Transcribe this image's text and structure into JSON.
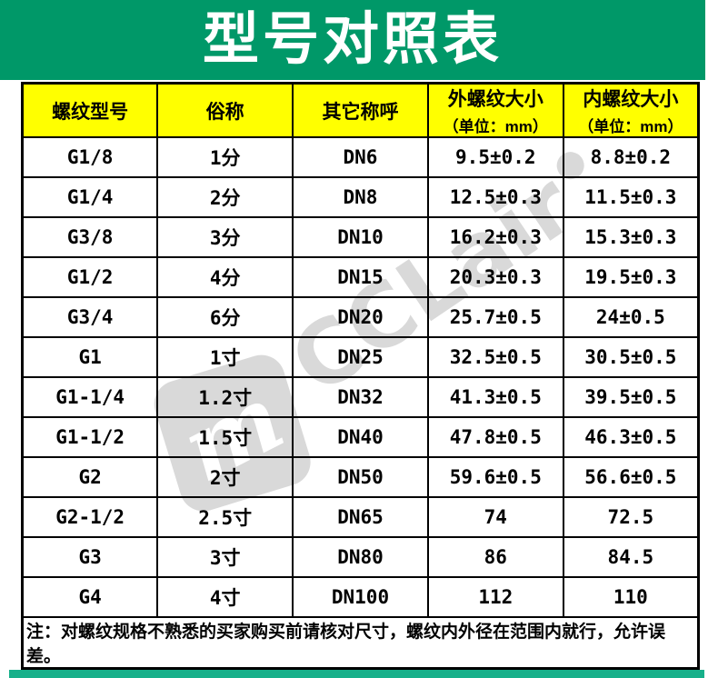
{
  "banner": {
    "title": "型号对照表",
    "bg_color": "#009868",
    "text_color": "#ffffff"
  },
  "table": {
    "header_bg": "#ffff00",
    "border_color": "#000000",
    "columns": [
      {
        "label": "螺纹型号",
        "unit": ""
      },
      {
        "label": "俗称",
        "unit": ""
      },
      {
        "label": "其它称呼",
        "unit": ""
      },
      {
        "label": "外螺纹大小",
        "unit": "（单位：mm）"
      },
      {
        "label": "内螺纹大小",
        "unit": "（单位：mm）"
      }
    ],
    "rows": [
      [
        "G1/8",
        "1分",
        "DN6",
        "9.5±0.2",
        "8.8±0.2"
      ],
      [
        "G1/4",
        "2分",
        "DN8",
        "12.5±0.3",
        "11.5±0.3"
      ],
      [
        "G3/8",
        "3分",
        "DN10",
        "16.2±0.3",
        "15.3±0.3"
      ],
      [
        "G1/2",
        "4分",
        "DN15",
        "20.3±0.3",
        "19.5±0.3"
      ],
      [
        "G3/4",
        "6分",
        "DN20",
        "25.7±0.5",
        "24±0.5"
      ],
      [
        "G1",
        "1寸",
        "DN25",
        "32.5±0.5",
        "30.5±0.5"
      ],
      [
        "G1-1/4",
        "1.2寸",
        "DN32",
        "41.3±0.5",
        "39.5±0.5"
      ],
      [
        "G1-1/2",
        "1.5寸",
        "DN40",
        "47.8±0.5",
        "46.3±0.5"
      ],
      [
        "G2",
        "2寸",
        "DN50",
        "59.6±0.5",
        "56.6±0.5"
      ],
      [
        "G2-1/2",
        "2.5寸",
        "DN65",
        "74",
        "72.5"
      ],
      [
        "G3",
        "3寸",
        "DN80",
        "86",
        "84.5"
      ],
      [
        "G4",
        "4寸",
        "DN100",
        "112",
        "110"
      ]
    ],
    "note": "注：对螺纹规格不熟悉的买家购买前请核对尺寸，螺纹内外径在范围内就行，允许误差。"
  },
  "watermark": {
    "text": "CCLair",
    "logo_glyph": "m",
    "color": "#d9d9d9"
  },
  "footer_bar": {
    "color": "#17b08a"
  }
}
